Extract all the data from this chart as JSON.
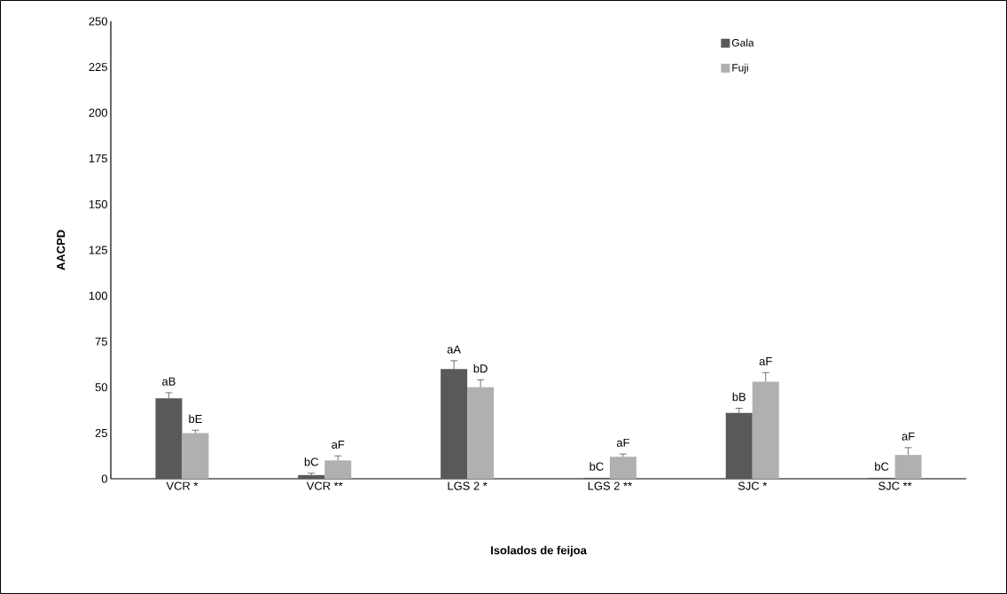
{
  "chart_data": {
    "type": "bar",
    "xlabel": "Isolados de feijoa",
    "ylabel": "AACPD",
    "categories": [
      "VCR *",
      "VCR **",
      "LGS 2 *",
      "LGS 2 **",
      "SJC *",
      "SJC **"
    ],
    "series": [
      {
        "name": "Gala",
        "color": "#595959",
        "values": [
          44,
          2,
          60,
          0.5,
          36,
          0.5
        ],
        "errors": [
          [
            44,
            47
          ],
          [
            2,
            3
          ],
          [
            60,
            64.5
          ],
          null,
          [
            36,
            38.5
          ],
          null
        ]
      },
      {
        "name": "Fuji",
        "color": "#b0b0b0",
        "values": [
          25,
          10,
          50,
          12,
          53,
          13
        ],
        "errors": [
          [
            25,
            26.5
          ],
          [
            10,
            12.5
          ],
          [
            50,
            54
          ],
          [
            12,
            13.5
          ],
          [
            53,
            58
          ],
          [
            13,
            17
          ]
        ]
      }
    ],
    "ylim": [
      0,
      250
    ],
    "yticks": [
      0,
      25,
      50,
      75,
      100,
      125,
      150,
      175,
      200,
      225,
      250
    ],
    "legend": "top right",
    "grid": false,
    "annotations": [
      "aB",
      "bE",
      "bC",
      "aF",
      "aA",
      "bD",
      "bC",
      "aF",
      "bB",
      "aF",
      "bC",
      "aF"
    ]
  }
}
